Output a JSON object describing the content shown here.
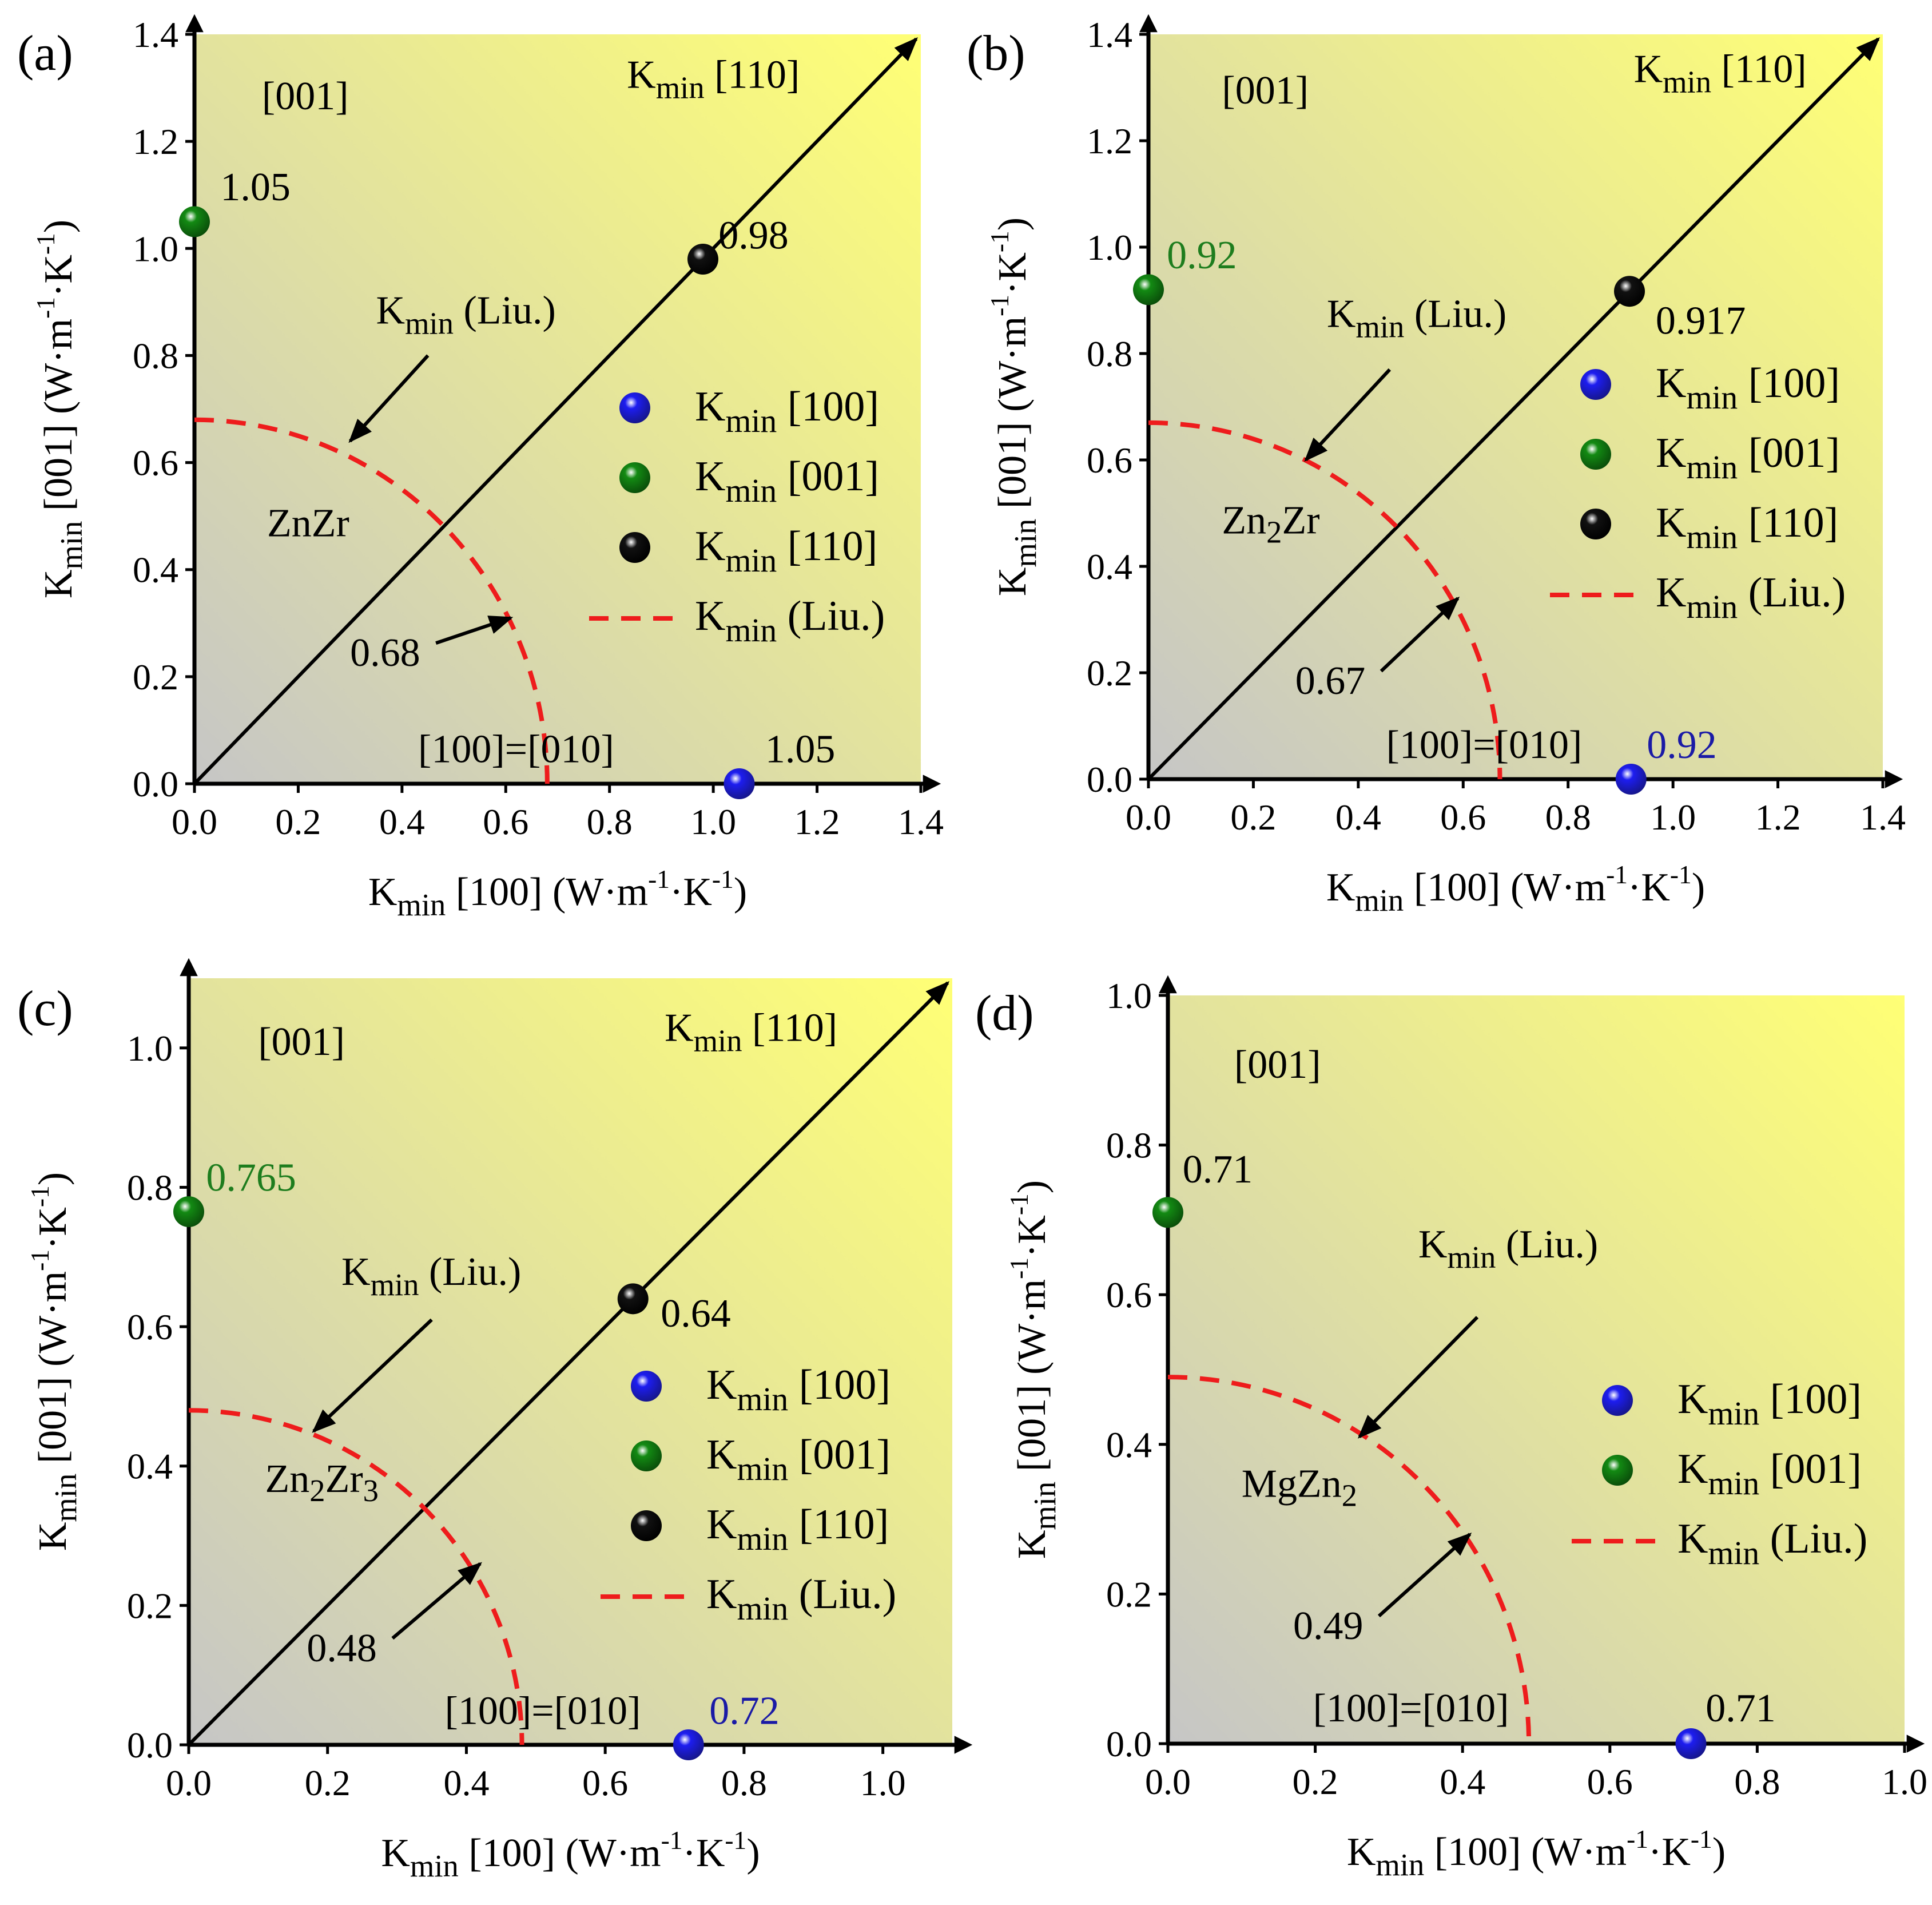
{
  "colors": {
    "bg_low": "#c6c6c6",
    "bg_high": "#ffff75",
    "liu_line": "#ee1c1c",
    "green_text": "#1e7d1e",
    "blue_text": "#1a1aa6",
    "blue_ball": "#1d1df0",
    "blue_ball_dark": "#16168a",
    "green_ball": "#138a13",
    "black_ball": "#111111"
  },
  "legend_text": {
    "k": "K",
    "min": "min",
    "k100": " [100]",
    "k001": " [001]",
    "k110": " [110]",
    "liu": " (Liu.)"
  },
  "axis_text": {
    "k": "K",
    "min": "min",
    "x_dir": " [100] ",
    "y_dir": " [001] ",
    "unit_open": "(W·m",
    "unit_exp": "-1",
    "unit_mid": "·K",
    "unit_close": ")"
  },
  "chart_data": [
    {
      "type": "scatter",
      "panel": "(a)",
      "material": "ZnZr",
      "xlabel": "Kmin [100] (W·m-1·K-1)",
      "ylabel": "Kmin [001] (W·m-1·K-1)",
      "xlim": [
        0,
        1.4
      ],
      "ylim": [
        0,
        1.4
      ],
      "xticks": [
        "0.0",
        "0.2",
        "0.4",
        "0.6",
        "0.8",
        "1.0",
        "1.2",
        "1.4"
      ],
      "yticks": [
        "0.0",
        "0.2",
        "0.4",
        "0.6",
        "0.8",
        "1.0",
        "1.2",
        "1.4"
      ],
      "liu_radius": 0.68,
      "liu_label": "0.68",
      "liu_label_data": [
        0.3,
        0.22
      ],
      "liu_arrow_tip": [
        0.61,
        0.31
      ],
      "liu_caption_data": [
        0.35,
        0.86
      ],
      "liu_caption_arrow": [
        [
          0.45,
          0.8
        ],
        [
          0.3,
          0.64
        ]
      ],
      "dir_labels": {
        "c001": "[001]",
        "c110": "[110]",
        "c100": "[100]=[010]"
      },
      "c001_pos": [
        0.13,
        1.26
      ],
      "c110_pos": [
        1.0,
        1.3
      ],
      "c100_pos": [
        0.62,
        0.04
      ],
      "points": [
        {
          "series": "[100]",
          "x": 1.05,
          "y": 0.0,
          "label": "1.05",
          "label_color": "black",
          "label_dx": 0.05,
          "label_dy": 0.04
        },
        {
          "series": "[001]",
          "x": 0.0,
          "y": 1.05,
          "label": "1.05",
          "label_color": "black",
          "label_dx": 0.05,
          "label_dy": 0.04
        },
        {
          "series": "[110]",
          "x": 0.98,
          "y": 0.98,
          "label": "0.98",
          "label_color": "black",
          "label_dx": 0.03,
          "label_dy": 0.02
        }
      ],
      "legend": [
        "[100]",
        "[001]",
        "[110]",
        "Liu."
      ]
    },
    {
      "type": "scatter",
      "panel": "(b)",
      "material": "Zn2Zr",
      "xlabel": "Kmin [100] (W·m-1·K-1)",
      "ylabel": "Kmin [001] (W·m-1·K-1)",
      "xlim": [
        0,
        1.4
      ],
      "ylim": [
        0,
        1.4
      ],
      "xticks": [
        "0.0",
        "0.2",
        "0.4",
        "0.6",
        "0.8",
        "1.0",
        "1.2",
        "1.4"
      ],
      "yticks": [
        "0.0",
        "0.2",
        "0.4",
        "0.6",
        "0.8",
        "1.0",
        "1.2",
        "1.4"
      ],
      "liu_radius": 0.67,
      "liu_label": "0.67",
      "liu_label_data": [
        0.28,
        0.16
      ],
      "liu_arrow_tip": [
        0.59,
        0.34
      ],
      "liu_caption_data": [
        0.34,
        0.85
      ],
      "liu_caption_arrow": [
        [
          0.46,
          0.77
        ],
        [
          0.3,
          0.6
        ]
      ],
      "dir_labels": {
        "c001": "[001]",
        "c110": "[110]",
        "c100": "[100]=[010]"
      },
      "c001_pos": [
        0.14,
        1.27
      ],
      "c110_pos": [
        1.09,
        1.31
      ],
      "c100_pos": [
        0.64,
        0.04
      ],
      "points": [
        {
          "series": "[100]",
          "x": 0.92,
          "y": 0.0,
          "label": "0.92",
          "label_color": "blue",
          "label_dx": 0.03,
          "label_dy": 0.04
        },
        {
          "series": "[001]",
          "x": 0.0,
          "y": 0.92,
          "label": "0.92",
          "label_color": "green",
          "label_dx": 0.035,
          "label_dy": 0.04
        },
        {
          "series": "[110]",
          "x": 0.917,
          "y": 0.917,
          "label": "0.917",
          "label_color": "black",
          "label_dx": 0.05,
          "label_dy": -0.08
        }
      ],
      "legend": [
        "[100]",
        "[001]",
        "[110]",
        "Liu."
      ]
    },
    {
      "type": "scatter",
      "panel": "(c)",
      "material": "Zn2Zr3",
      "xlabel": "Kmin [100] (W·m-1·K-1)",
      "ylabel": "Kmin [001] (W·m-1·K-1)",
      "xlim": [
        0,
        1.1
      ],
      "ylim": [
        0,
        1.1
      ],
      "xticks": [
        "0.0",
        "0.2",
        "0.4",
        "0.6",
        "0.8",
        "1.0"
      ],
      "yticks": [
        "0.0",
        "0.2",
        "0.4",
        "0.6",
        "0.8",
        "1.0"
      ],
      "liu_radius": 0.48,
      "liu_label": "0.48",
      "liu_label_data": [
        0.17,
        0.12
      ],
      "liu_arrow_tip": [
        0.42,
        0.26
      ],
      "liu_caption_data": [
        0.22,
        0.66
      ],
      "liu_caption_arrow": [
        [
          0.35,
          0.61
        ],
        [
          0.18,
          0.45
        ]
      ],
      "dir_labels": {
        "c001": "[001]",
        "c110": "[110]",
        "c100": "[100]=[010]"
      },
      "c001_pos": [
        0.1,
        0.99
      ],
      "c110_pos": [
        0.81,
        1.01
      ],
      "c100_pos": [
        0.51,
        0.03
      ],
      "points": [
        {
          "series": "[100]",
          "x": 0.72,
          "y": 0.0,
          "label": "0.72",
          "label_color": "blue",
          "label_dx": 0.03,
          "label_dy": 0.03
        },
        {
          "series": "[001]",
          "x": 0.0,
          "y": 0.765,
          "label": "0.765",
          "label_color": "green",
          "label_dx": 0.025,
          "label_dy": 0.03
        },
        {
          "series": "[110]",
          "x": 0.64,
          "y": 0.64,
          "label": "0.64",
          "label_color": "black",
          "label_dx": 0.04,
          "label_dy": -0.04
        }
      ],
      "legend": [
        "[100]",
        "[001]",
        "[110]",
        "Liu."
      ]
    },
    {
      "type": "scatter",
      "panel": "(d)",
      "material": "MgZn2",
      "xlabel": "Kmin [100] (W·m-1·K-1)",
      "ylabel": "Kmin [001] (W·m-1·K-1)",
      "xlim": [
        0,
        1.0
      ],
      "ylim": [
        0,
        1.0
      ],
      "xticks": [
        "0.0",
        "0.2",
        "0.4",
        "0.6",
        "0.8",
        "1.0"
      ],
      "yticks": [
        "0.0",
        "0.2",
        "0.4",
        "0.6",
        "0.8",
        "1.0"
      ],
      "liu_radius": 0.49,
      "liu_label": "0.49",
      "liu_label_data": [
        0.17,
        0.14
      ],
      "liu_arrow_tip": [
        0.41,
        0.28
      ],
      "liu_caption_data": [
        0.34,
        0.65
      ],
      "liu_caption_arrow": [
        [
          0.42,
          0.57
        ],
        [
          0.26,
          0.41
        ]
      ],
      "dir_labels": {
        "c001": "[001]",
        "c100": "[100]=[010]"
      },
      "c001_pos": [
        0.09,
        0.89
      ],
      "c100_pos": [
        0.33,
        0.03
      ],
      "points": [
        {
          "series": "[100]",
          "x": 0.71,
          "y": 0.0,
          "label": "0.71",
          "label_color": "black",
          "label_dx": 0.02,
          "label_dy": 0.03
        },
        {
          "series": "[001]",
          "x": 0.0,
          "y": 0.71,
          "label": "0.71",
          "label_color": "black",
          "label_dx": 0.02,
          "label_dy": 0.04
        }
      ],
      "legend": [
        "[100]",
        "[001]",
        "Liu."
      ]
    }
  ]
}
